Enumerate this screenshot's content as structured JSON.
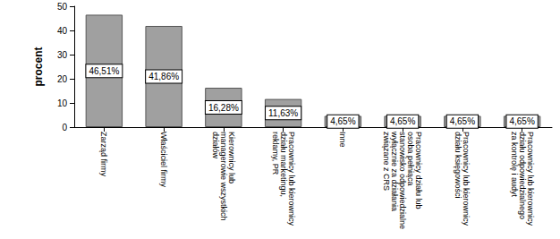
{
  "chart_data": {
    "type": "bar",
    "y_label": "procent",
    "categories": [
      "Zarząd firmy",
      "Właściciel firmy",
      "Kierownicy lub managerowie wszystkich działów",
      "Pracownicy lub kierownicy działu marketingu, reklamy, PR",
      "Inne",
      "Pracownicy działu lub osoba pełniąca stanowisko odpowiedzialne wyłącznie za działania związane z CRS",
      "Pracownicy lub kierownicy działu księgowości",
      "Pracownicy lub kierownicy działu odpowiedzialnego za kontrolę i audyt"
    ],
    "values": [
      46.51,
      41.86,
      16.28,
      11.63,
      4.65,
      4.65,
      4.65,
      4.65
    ],
    "value_labels": [
      "46,51%",
      "41,86%",
      "16,28%",
      "11,63%",
      "4,65%",
      "4,65%",
      "4,65%",
      "4,65%"
    ],
    "color": "#a0a0a0",
    "ylim": [
      0,
      50
    ],
    "yticks": [
      0,
      10,
      20,
      30,
      40,
      50
    ],
    "grid": false,
    "data_labels": true
  }
}
